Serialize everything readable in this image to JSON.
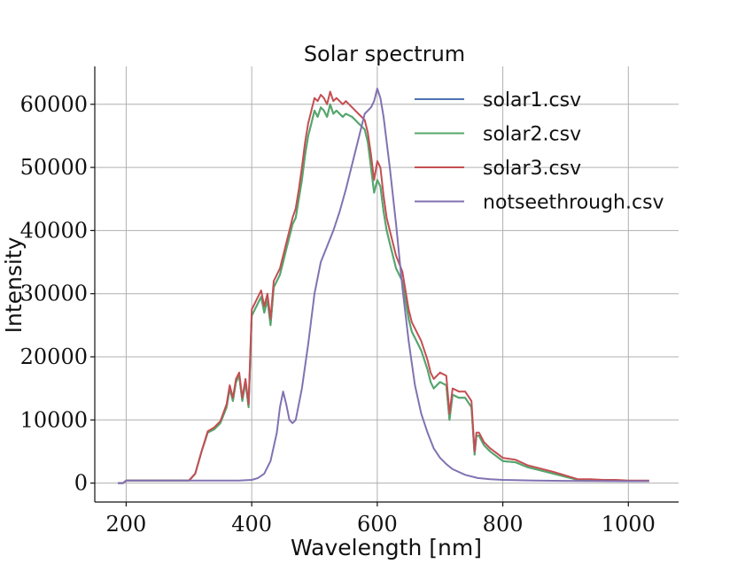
{
  "chart_data": {
    "type": "line",
    "title": "Solar spectrum",
    "xlabel": "Wavelength [nm]",
    "ylabel": "Intensity",
    "xlim": [
      150,
      1080
    ],
    "ylim": [
      -3000,
      66000
    ],
    "xticks": [
      200,
      400,
      600,
      800,
      1000
    ],
    "yticks": [
      0,
      10000,
      20000,
      30000,
      40000,
      50000,
      60000
    ],
    "grid": true,
    "legend": "top-right",
    "series": [
      {
        "name": "solar1.csv",
        "color": "#4c72b0",
        "x": [
          187,
          195,
          200,
          250,
          300,
          310,
          320,
          330,
          340,
          350,
          360,
          365,
          370,
          375,
          380,
          385,
          390,
          395,
          400,
          405,
          410,
          415,
          420,
          425,
          430,
          435,
          440,
          445,
          450,
          455,
          460,
          465,
          470,
          475,
          480,
          485,
          490,
          495,
          500,
          505,
          510,
          515,
          520,
          525,
          530,
          535,
          540,
          545,
          550,
          560,
          570,
          575,
          580,
          585,
          590,
          595,
          600,
          605,
          610,
          615,
          620,
          630,
          640,
          650,
          655,
          660,
          670,
          680,
          685,
          690,
          700,
          710,
          715,
          720,
          730,
          740,
          750,
          755,
          758,
          762,
          770,
          780,
          800,
          820,
          840,
          860,
          880,
          900,
          920,
          940,
          960,
          980,
          1000,
          1033
        ],
        "y": [
          0,
          0,
          400,
          400,
          400,
          1500,
          5000,
          8000,
          8500,
          9500,
          12000,
          15000,
          13000,
          16000,
          17000,
          13000,
          16000,
          12000,
          26500,
          27500,
          28500,
          29500,
          27000,
          29000,
          25000,
          31000,
          32000,
          33000,
          35000,
          37000,
          39000,
          41000,
          42000,
          45000,
          48000,
          52000,
          55000,
          57000,
          59000,
          58000,
          59500,
          59000,
          58000,
          60000,
          58500,
          59000,
          58500,
          58000,
          58500,
          58000,
          57000,
          56500,
          56000,
          54000,
          50000,
          46000,
          48000,
          47000,
          43000,
          40000,
          38000,
          34000,
          32000,
          26000,
          24000,
          23000,
          21000,
          18000,
          16000,
          15000,
          16000,
          15500,
          10000,
          14000,
          13500,
          13500,
          12000,
          4500,
          7500,
          7500,
          6000,
          5000,
          3500,
          3300,
          2500,
          2000,
          1500,
          1000,
          500,
          500,
          400,
          400,
          300,
          300
        ]
      },
      {
        "name": "solar2.csv",
        "color": "#55a868",
        "x": [
          187,
          195,
          200,
          250,
          300,
          310,
          320,
          330,
          340,
          350,
          360,
          365,
          370,
          375,
          380,
          385,
          390,
          395,
          400,
          405,
          410,
          415,
          420,
          425,
          430,
          435,
          440,
          445,
          450,
          455,
          460,
          465,
          470,
          475,
          480,
          485,
          490,
          495,
          500,
          505,
          510,
          515,
          520,
          525,
          530,
          535,
          540,
          545,
          550,
          560,
          570,
          575,
          580,
          585,
          590,
          595,
          600,
          605,
          610,
          615,
          620,
          630,
          640,
          650,
          655,
          660,
          670,
          680,
          685,
          690,
          700,
          710,
          715,
          720,
          730,
          740,
          750,
          755,
          758,
          762,
          770,
          780,
          800,
          820,
          840,
          860,
          880,
          900,
          920,
          940,
          960,
          980,
          1000,
          1033
        ],
        "y": [
          0,
          0,
          400,
          400,
          400,
          1500,
          5000,
          8000,
          8500,
          9500,
          12000,
          15000,
          13000,
          16000,
          17000,
          13000,
          16000,
          12000,
          26500,
          27500,
          28500,
          29500,
          27000,
          29000,
          25000,
          31000,
          32000,
          33000,
          35000,
          37000,
          39000,
          41000,
          42000,
          45000,
          48000,
          52000,
          55000,
          57000,
          59000,
          58000,
          59500,
          59000,
          58000,
          60000,
          58500,
          59000,
          58500,
          58000,
          58500,
          58000,
          57000,
          56500,
          56000,
          54000,
          50000,
          46000,
          48000,
          47000,
          43000,
          40000,
          38000,
          34000,
          32000,
          26000,
          24000,
          23000,
          21000,
          18000,
          16000,
          15000,
          16000,
          15500,
          10000,
          14000,
          13500,
          13500,
          12000,
          4500,
          7500,
          7500,
          6000,
          5000,
          3500,
          3300,
          2500,
          2000,
          1500,
          1000,
          500,
          500,
          400,
          400,
          300,
          300
        ]
      },
      {
        "name": "solar3.csv",
        "color": "#c44e52",
        "x": [
          187,
          195,
          200,
          250,
          300,
          310,
          320,
          330,
          340,
          350,
          360,
          365,
          370,
          375,
          380,
          385,
          390,
          395,
          400,
          405,
          410,
          415,
          420,
          425,
          430,
          435,
          440,
          445,
          450,
          455,
          460,
          465,
          470,
          475,
          480,
          485,
          490,
          495,
          500,
          505,
          510,
          515,
          520,
          525,
          530,
          535,
          540,
          545,
          550,
          560,
          570,
          575,
          580,
          585,
          590,
          595,
          600,
          605,
          610,
          615,
          620,
          630,
          640,
          650,
          655,
          660,
          670,
          680,
          685,
          690,
          700,
          710,
          715,
          720,
          730,
          740,
          750,
          755,
          758,
          762,
          770,
          780,
          800,
          820,
          840,
          860,
          880,
          900,
          920,
          940,
          960,
          980,
          1000,
          1033
        ],
        "y": [
          0,
          0,
          400,
          400,
          400,
          1500,
          5000,
          8200,
          8800,
          9800,
          12500,
          15500,
          13500,
          16500,
          17500,
          13500,
          16500,
          12500,
          27500,
          28500,
          29500,
          30500,
          28000,
          30000,
          26000,
          32000,
          33000,
          34000,
          36000,
          38000,
          40000,
          42000,
          43500,
          46500,
          50000,
          54000,
          57000,
          59000,
          61000,
          60500,
          61500,
          61000,
          60000,
          62000,
          60500,
          61000,
          60500,
          60000,
          60500,
          59500,
          58500,
          58000,
          57500,
          55500,
          52000,
          48000,
          51000,
          50000,
          45500,
          42000,
          40000,
          36000,
          33500,
          27500,
          25500,
          24500,
          22500,
          19500,
          17500,
          16500,
          17500,
          17000,
          11000,
          15000,
          14500,
          14500,
          13000,
          5000,
          8000,
          8000,
          6500,
          5500,
          4000,
          3700,
          2800,
          2300,
          1800,
          1200,
          600,
          600,
          500,
          500,
          400,
          400
        ]
      },
      {
        "name": "notseethrough.csv",
        "color": "#8172b2",
        "x": [
          187,
          195,
          200,
          250,
          300,
          350,
          380,
          400,
          410,
          420,
          430,
          440,
          445,
          450,
          455,
          460,
          465,
          470,
          480,
          490,
          500,
          510,
          520,
          530,
          540,
          550,
          560,
          570,
          580,
          590,
          595,
          600,
          605,
          610,
          615,
          620,
          630,
          640,
          650,
          660,
          670,
          680,
          690,
          700,
          710,
          720,
          740,
          760,
          780,
          800,
          850,
          900,
          1000,
          1033
        ],
        "y": [
          0,
          0,
          400,
          400,
          400,
          400,
          400,
          500,
          800,
          1500,
          3500,
          8000,
          12000,
          14500,
          12500,
          10000,
          9500,
          10000,
          15000,
          22000,
          30000,
          35000,
          37500,
          40000,
          43000,
          46500,
          50500,
          54500,
          58500,
          59500,
          60500,
          62500,
          61000,
          58000,
          54000,
          50000,
          41000,
          31000,
          22500,
          15500,
          11000,
          8000,
          5500,
          4000,
          3000,
          2200,
          1300,
          800,
          600,
          500,
          400,
          350,
          300,
          300
        ]
      }
    ]
  }
}
